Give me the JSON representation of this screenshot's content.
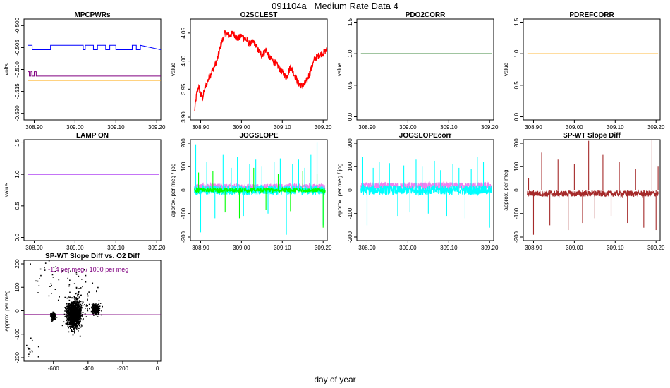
{
  "page": {
    "title": "091104a   Medium Rate Data 4",
    "xlabel": "day of year"
  },
  "chart_data": [
    {
      "type": "line",
      "title": "MPCPWRs",
      "ylabel": "volts",
      "xlim": [
        308.875,
        309.21
      ],
      "ylim": [
        -0.5215,
        -0.4985
      ],
      "xticks": [
        308.9,
        309.0,
        309.1,
        309.2
      ],
      "xtick_labels": [
        "308.90",
        "309.00",
        "309.10",
        "309.20"
      ],
      "yticks": [
        -0.52,
        -0.515,
        -0.51,
        -0.505,
        -0.5
      ],
      "ytick_labels": [
        "-0.520",
        "-0.515",
        "-0.510",
        "-0.505",
        "-0.500"
      ],
      "series": [
        {
          "name": "",
          "color": "#0000ff",
          "style": "step",
          "x": [
            308.885,
            308.895,
            308.895,
            308.94,
            308.94,
            309.02,
            309.02,
            309.025,
            309.025,
            309.045,
            309.045,
            309.055,
            309.055,
            309.075,
            309.075,
            309.085,
            309.085,
            309.1,
            309.1,
            309.14,
            309.14,
            309.15,
            309.15,
            309.16,
            309.16,
            309.21
          ],
          "y": [
            -0.5045,
            -0.5045,
            -0.5055,
            -0.5055,
            -0.5045,
            -0.5045,
            -0.5055,
            -0.5055,
            -0.5045,
            -0.5045,
            -0.5055,
            -0.5055,
            -0.5045,
            -0.5045,
            -0.5055,
            -0.5055,
            -0.5045,
            -0.5045,
            -0.5055,
            -0.5055,
            -0.5045,
            -0.5045,
            -0.5055,
            -0.5055,
            -0.5045,
            -0.5055
          ]
        },
        {
          "name": "",
          "color": "#800080",
          "style": "step",
          "x": [
            308.885,
            308.888,
            308.888,
            308.892,
            308.892,
            308.895,
            308.895,
            308.9,
            308.9,
            308.905,
            308.905,
            309.21
          ],
          "y": [
            -0.5105,
            -0.5105,
            -0.5115,
            -0.5115,
            -0.5105,
            -0.5105,
            -0.5115,
            -0.5115,
            -0.5105,
            -0.5105,
            -0.5115,
            -0.5115
          ]
        },
        {
          "name": "",
          "color": "#ffa500",
          "style": "line",
          "x": [
            308.885,
            309.21
          ],
          "y": [
            -0.5125,
            -0.5125
          ]
        }
      ]
    },
    {
      "type": "line",
      "title": "O2SCLEST",
      "ylabel": "value",
      "xlim": [
        308.875,
        309.21
      ],
      "ylim": [
        3.895,
        4.075
      ],
      "xticks": [
        308.9,
        309.0,
        309.1,
        309.2
      ],
      "xtick_labels": [
        "308.90",
        "309.00",
        "309.10",
        "309.20"
      ],
      "yticks": [
        3.9,
        3.95,
        4.0,
        4.05
      ],
      "ytick_labels": [
        "3.90",
        "3.95",
        "4.00",
        "4.05"
      ],
      "series": [
        {
          "name": "",
          "color": "#ff0000",
          "style": "band",
          "band_width": 0.012,
          "x": [
            308.885,
            308.89,
            308.895,
            308.9,
            308.905,
            308.91,
            308.92,
            308.93,
            308.94,
            308.95,
            308.96,
            308.97,
            308.98,
            308.99,
            309.0,
            309.01,
            309.02,
            309.03,
            309.04,
            309.05,
            309.06,
            309.07,
            309.08,
            309.09,
            309.1,
            309.11,
            309.12,
            309.13,
            309.14,
            309.15,
            309.16,
            309.17,
            309.18,
            309.19,
            309.2,
            309.21
          ],
          "y": [
            3.91,
            3.94,
            3.955,
            3.94,
            3.935,
            3.95,
            3.97,
            3.985,
            4.0,
            4.03,
            4.05,
            4.045,
            4.05,
            4.04,
            4.045,
            4.04,
            4.03,
            4.035,
            4.02,
            4.01,
            4.02,
            4.005,
            4.0,
            3.99,
            3.98,
            3.97,
            3.99,
            3.975,
            3.96,
            3.955,
            3.965,
            3.985,
            4.005,
            4.01,
            4.015,
            4.02
          ]
        }
      ]
    },
    {
      "type": "line",
      "title": "PDO2CORR",
      "ylabel": "value",
      "xlim": [
        308.875,
        309.21
      ],
      "ylim": [
        -0.05,
        1.55
      ],
      "xticks": [
        308.9,
        309.0,
        309.1,
        309.2
      ],
      "xtick_labels": [
        "308.90",
        "309.00",
        "309.10",
        "309.20"
      ],
      "yticks": [
        0.0,
        0.5,
        1.0,
        1.5
      ],
      "ytick_labels": [
        "0.0",
        "0.5",
        "1.0",
        "1.5"
      ],
      "series": [
        {
          "name": "",
          "color": "#006400",
          "style": "line",
          "x": [
            308.885,
            309.205
          ],
          "y": [
            1.0,
            1.0
          ]
        }
      ]
    },
    {
      "type": "line",
      "title": "PDREFCORR",
      "ylabel": "value",
      "xlim": [
        308.875,
        309.21
      ],
      "ylim": [
        -0.05,
        1.55
      ],
      "xticks": [
        308.9,
        309.0,
        309.1,
        309.2
      ],
      "xtick_labels": [
        "308.90",
        "309.00",
        "309.10",
        "309.20"
      ],
      "yticks": [
        0.0,
        0.5,
        1.0,
        1.5
      ],
      "ytick_labels": [
        "0.0",
        "0.5",
        "1.0",
        "1.5"
      ],
      "series": [
        {
          "name": "",
          "color": "#ffa500",
          "style": "line",
          "x": [
            308.885,
            309.205
          ],
          "y": [
            1.0,
            1.0
          ]
        }
      ]
    },
    {
      "type": "line",
      "title": "LAMP ON",
      "ylabel": "value",
      "xlim": [
        308.875,
        309.21
      ],
      "ylim": [
        -0.05,
        1.55
      ],
      "xticks": [
        308.9,
        309.0,
        309.1,
        309.2
      ],
      "xtick_labels": [
        "308.90",
        "309.00",
        "309.10",
        "309.20"
      ],
      "yticks": [
        0.0,
        0.5,
        1.0,
        1.5
      ],
      "ytick_labels": [
        "0.0",
        "0.5",
        "1.0",
        "1.5"
      ],
      "series": [
        {
          "name": "",
          "color": "#a020f0",
          "style": "line",
          "x": [
            308.885,
            309.205
          ],
          "y": [
            1.0,
            1.0
          ]
        }
      ]
    },
    {
      "type": "line",
      "title": "JOGSLOPE",
      "ylabel": "approx. per meg / jog",
      "xlim": [
        308.875,
        309.21
      ],
      "ylim": [
        -215,
        215
      ],
      "xticks": [
        308.9,
        309.0,
        309.1,
        309.2
      ],
      "xtick_labels": [
        "308.90",
        "309.00",
        "309.10",
        "309.20"
      ],
      "yticks": [
        -200,
        -100,
        0,
        100,
        200
      ],
      "ytick_labels": [
        "-200",
        "-100",
        "0",
        "100",
        "200"
      ],
      "hline": 0,
      "series": [
        {
          "name": "",
          "color": "#ee82ee",
          "style": "band",
          "x": [
            308.885,
            309.205
          ],
          "y": [
            15,
            15
          ],
          "band_width": 25
        },
        {
          "name": "",
          "color": "#00ffff",
          "style": "band",
          "x": [
            308.885,
            309.205
          ],
          "y": [
            0,
            0
          ],
          "band_width": 40
        },
        {
          "name": "",
          "color": "#00ff00",
          "style": "band",
          "x": [
            308.885,
            309.205
          ],
          "y": [
            0,
            0
          ],
          "band_width": 18
        }
      ],
      "spikes": [
        {
          "color": "#00ffff",
          "x": [
            308.888,
            308.9,
            308.915,
            308.935,
            308.955,
            308.975,
            308.99,
            309.005,
            309.02,
            309.035,
            309.05,
            309.065,
            309.08,
            309.095,
            309.11,
            309.125,
            309.14,
            309.155,
            309.17,
            309.185,
            309.2
          ],
          "y": [
            195,
            -180,
            120,
            -120,
            150,
            95,
            140,
            -110,
            110,
            130,
            100,
            -100,
            120,
            135,
            -190,
            110,
            130,
            95,
            150,
            205,
            -150
          ]
        },
        {
          "color": "#00ff00",
          "x": [
            308.895,
            308.93,
            308.96,
            308.995,
            309.03,
            309.06,
            309.09,
            309.12,
            309.15,
            309.185,
            309.2
          ],
          "y": [
            75,
            80,
            -95,
            -120,
            95,
            -85,
            70,
            -90,
            80,
            70,
            -160
          ]
        }
      ]
    },
    {
      "type": "line",
      "title": "JOGSLOPEcorr",
      "ylabel": "approx. per meg / jog",
      "xlim": [
        308.875,
        309.21
      ],
      "ylim": [
        -215,
        215
      ],
      "xticks": [
        308.9,
        309.0,
        309.1,
        309.2
      ],
      "xtick_labels": [
        "308.90",
        "309.00",
        "309.10",
        "309.20"
      ],
      "yticks": [
        -200,
        -100,
        0,
        100,
        200
      ],
      "ytick_labels": [
        "-200",
        "-100",
        "0",
        "100",
        "200"
      ],
      "hline": 0,
      "series": [
        {
          "name": "",
          "color": "#ee82ee",
          "style": "band",
          "x": [
            308.885,
            309.205
          ],
          "y": [
            18,
            18
          ],
          "band_width": 30
        },
        {
          "name": "",
          "color": "#00ffff",
          "style": "band",
          "x": [
            308.885,
            309.205
          ],
          "y": [
            0,
            0
          ],
          "band_width": 40
        }
      ],
      "spikes": [
        {
          "color": "#00ffff",
          "x": [
            308.888,
            308.9,
            308.915,
            308.93,
            308.955,
            308.975,
            308.99,
            309.005,
            309.02,
            309.035,
            309.05,
            309.065,
            309.08,
            309.095,
            309.11,
            309.125,
            309.14,
            309.155,
            309.17,
            309.185,
            309.2
          ],
          "y": [
            140,
            -150,
            95,
            120,
            115,
            -110,
            105,
            -95,
            130,
            100,
            -100,
            125,
            85,
            -110,
            110,
            95,
            -120,
            90,
            140,
            120,
            -160
          ]
        }
      ]
    },
    {
      "type": "line",
      "title": "SP-WT Slope Diff",
      "ylabel": "approx. per meg",
      "xlim": [
        308.875,
        309.21
      ],
      "ylim": [
        -215,
        215
      ],
      "xticks": [
        308.9,
        309.0,
        309.1,
        309.2
      ],
      "xtick_labels": [
        "308.90",
        "309.00",
        "309.10",
        "309.20"
      ],
      "yticks": [
        -200,
        -100,
        0,
        100,
        200
      ],
      "ytick_labels": [
        "-200",
        "-100",
        "0",
        "100",
        "200"
      ],
      "hline": 0,
      "series": [
        {
          "name": "",
          "color": "#a52a2a",
          "style": "band",
          "x": [
            308.885,
            309.205
          ],
          "y": [
            -15,
            -15
          ],
          "band_width": 25
        }
      ],
      "spikes": [
        {
          "color": "#a52a2a",
          "x": [
            308.888,
            308.9,
            308.92,
            308.94,
            308.96,
            308.985,
            309.0,
            309.02,
            309.035,
            309.05,
            309.07,
            309.09,
            309.11,
            309.13,
            309.15,
            309.17,
            309.19,
            309.2,
            309.205
          ],
          "y": [
            50,
            -190,
            160,
            -150,
            130,
            -170,
            110,
            -140,
            210,
            -120,
            150,
            -110,
            120,
            -140,
            90,
            -160,
            215,
            -170,
            100
          ]
        }
      ]
    },
    {
      "type": "scatter",
      "title": "SP-WT Slope Diff vs. O2 Diff",
      "ylabel": "approx. per meg",
      "annotation": "-1.4 per meg / 1000 per meg",
      "annotation_color": "#800080",
      "xlim": [
        -770,
        20
      ],
      "ylim": [
        -215,
        215
      ],
      "xticks": [
        -600,
        -400,
        -200,
        0
      ],
      "xtick_labels": [
        "-600",
        "-400",
        "-200",
        "0"
      ],
      "yticks": [
        -200,
        -100,
        0,
        100,
        200
      ],
      "ytick_labels": [
        "-200",
        "-100",
        "0",
        "100",
        "200"
      ],
      "fit_line": {
        "color": "#800080",
        "x": [
          -770,
          20
        ],
        "y": [
          -16,
          -17
        ]
      },
      "clusters": [
        {
          "cx": -480,
          "cy": -15,
          "sx": 20,
          "sy": 28,
          "n": 1400
        },
        {
          "cx": -355,
          "cy": 5,
          "sx": 10,
          "sy": 10,
          "n": 300
        },
        {
          "cx": -600,
          "cy": -25,
          "sx": 7,
          "sy": 8,
          "n": 140
        },
        {
          "cx": -560,
          "cy": 120,
          "sx": 80,
          "sy": 50,
          "n": 40
        },
        {
          "cx": -420,
          "cy": 60,
          "sx": 40,
          "sy": 50,
          "n": 40
        },
        {
          "cx": -740,
          "cy": -150,
          "sx": 20,
          "sy": 40,
          "n": 15
        }
      ]
    }
  ]
}
